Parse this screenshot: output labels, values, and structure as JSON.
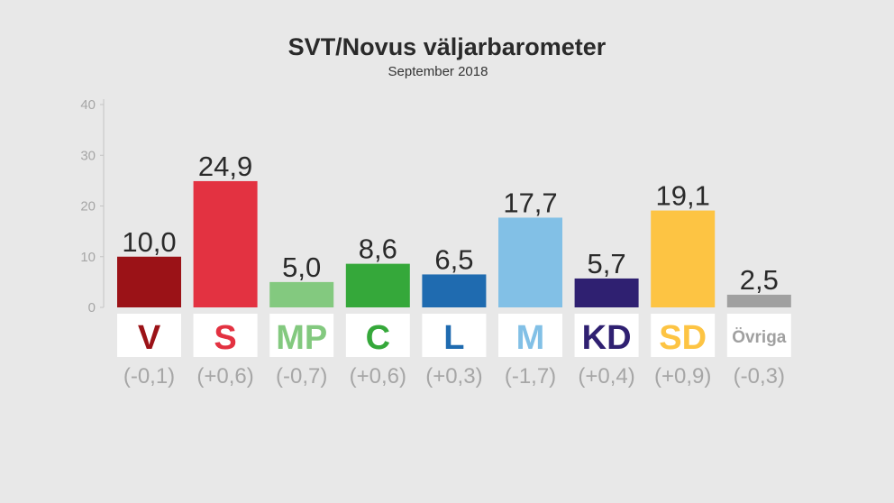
{
  "chart_data": {
    "type": "bar",
    "title": "SVT/Novus väljarbarometer",
    "subtitle": "September 2018",
    "ylim": [
      0,
      40
    ],
    "yticks": [
      "0",
      "10",
      "20",
      "30",
      "40"
    ],
    "categories": [
      "V",
      "S",
      "MP",
      "C",
      "L",
      "M",
      "KD",
      "SD",
      "Övriga"
    ],
    "values": [
      10.0,
      24.9,
      5.0,
      8.6,
      6.5,
      17.7,
      5.7,
      19.1,
      2.5
    ],
    "value_labels": [
      "10,0",
      "24,9",
      "5,0",
      "8,6",
      "6,5",
      "17,7",
      "5,7",
      "19,1",
      "2,5"
    ],
    "changes": [
      "(-0,1)",
      "(+0,6)",
      "(-0,7)",
      "(+0,6)",
      "(+0,3)",
      "(-1,7)",
      "(+0,4)",
      "(+0,9)",
      "(-0,3)"
    ],
    "colors": [
      "#9b1217",
      "#e33241",
      "#83c97f",
      "#35a83a",
      "#1f6bb0",
      "#82c0e6",
      "#2f2071",
      "#fdc443",
      "#a0a0a0"
    ],
    "grid": false
  }
}
